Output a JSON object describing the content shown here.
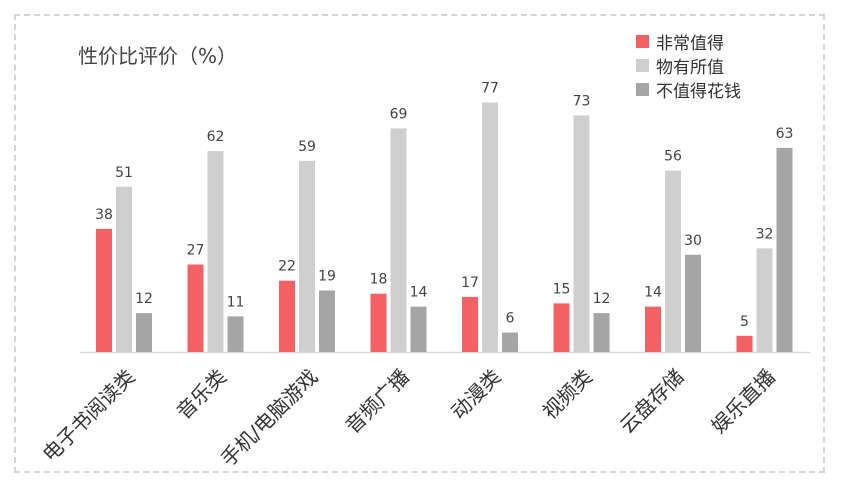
{
  "chart_data": {
    "type": "bar",
    "title": "性价比评价（%）",
    "categories": [
      "电子书阅读类",
      "音乐类",
      "手机/电脑游戏",
      "音频广播",
      "动漫类",
      "视频类",
      "云盘存储",
      "娱乐直播"
    ],
    "series": [
      {
        "name": "非常值得",
        "color": "#f46165",
        "values": [
          38,
          27,
          22,
          18,
          17,
          15,
          14,
          5
        ]
      },
      {
        "name": "物有所值",
        "color": "#d0cfcf",
        "values": [
          51,
          62,
          59,
          69,
          77,
          73,
          56,
          32
        ]
      },
      {
        "name": "不值得花钱",
        "color": "#a5a5a5",
        "values": [
          12,
          11,
          19,
          14,
          6,
          12,
          30,
          63
        ]
      }
    ],
    "ylim": [
      0,
      100
    ],
    "grid": false,
    "legend_position": "top-right"
  }
}
